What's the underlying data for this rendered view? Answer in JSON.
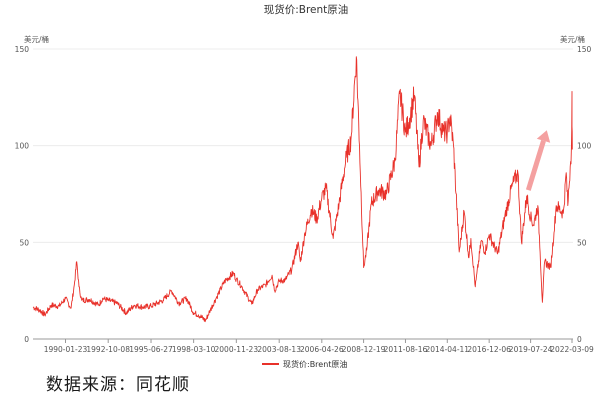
{
  "chart_data": {
    "type": "line",
    "title": "现货价:Brent原油",
    "y_unit_left": "美元/桶",
    "y_unit_right": "美元/桶",
    "ylim": [
      0,
      150
    ],
    "yticks": [
      "0",
      "50",
      "100",
      "150"
    ],
    "x_range": [
      "1988-01-01",
      "2022-04-01"
    ],
    "xticks": [
      "1990-01-23",
      "1992-10-08",
      "1995-06-27",
      "1998-03-10",
      "2000-11-23",
      "2003-08-13",
      "2006-04-26",
      "2008-12-19",
      "2011-08-16",
      "2014-04-11",
      "2016-12-06",
      "2019-07-24",
      "2022-03-09"
    ],
    "grid": true,
    "legend_position": "bottom-center",
    "series": [
      {
        "name": "现货价:Brent原油",
        "color": "#e8312a",
        "points": [
          [
            "1988-01-01",
            16.5
          ],
          [
            "1988-06-01",
            15.0
          ],
          [
            "1988-10-01",
            12.5
          ],
          [
            "1989-03-01",
            17.5
          ],
          [
            "1989-09-01",
            17.0
          ],
          [
            "1990-01-23",
            21.0
          ],
          [
            "1990-06-01",
            16.0
          ],
          [
            "1990-08-15",
            28.0
          ],
          [
            "1990-10-10",
            40.0
          ],
          [
            "1990-12-01",
            27.0
          ],
          [
            "1991-02-01",
            20.0
          ],
          [
            "1991-08-01",
            20.5
          ],
          [
            "1992-03-01",
            17.5
          ],
          [
            "1992-06-01",
            21.0
          ],
          [
            "1992-10-08",
            20.0
          ],
          [
            "1993-05-01",
            18.5
          ],
          [
            "1993-12-01",
            13.5
          ],
          [
            "1994-06-01",
            17.5
          ],
          [
            "1995-01-01",
            16.5
          ],
          [
            "1995-06-27",
            17.0
          ],
          [
            "1996-04-01",
            20.0
          ],
          [
            "1996-10-15",
            25.0
          ],
          [
            "1997-04-01",
            18.5
          ],
          [
            "1997-10-01",
            21.0
          ],
          [
            "1998-03-10",
            13.5
          ],
          [
            "1998-07-01",
            12.5
          ],
          [
            "1998-12-10",
            9.5
          ],
          [
            "1999-04-01",
            15.0
          ],
          [
            "1999-09-01",
            22.0
          ],
          [
            "2000-03-01",
            30.0
          ],
          [
            "2000-09-15",
            34.0
          ],
          [
            "2000-11-23",
            31.0
          ],
          [
            "2001-04-01",
            27.0
          ],
          [
            "2001-11-15",
            18.0
          ],
          [
            "2002-04-01",
            25.5
          ],
          [
            "2002-10-01",
            28.0
          ],
          [
            "2003-03-01",
            33.0
          ],
          [
            "2003-05-01",
            25.0
          ],
          [
            "2003-08-13",
            30.0
          ],
          [
            "2004-01-01",
            30.5
          ],
          [
            "2004-06-01",
            36.0
          ],
          [
            "2004-10-20",
            50.0
          ],
          [
            "2004-12-15",
            40.0
          ],
          [
            "2005-04-01",
            55.0
          ],
          [
            "2005-08-30",
            67.0
          ],
          [
            "2006-01-01",
            62.0
          ],
          [
            "2006-04-26",
            73.0
          ],
          [
            "2006-08-05",
            78.0
          ],
          [
            "2007-01-15",
            52.0
          ],
          [
            "2007-06-01",
            70.0
          ],
          [
            "2007-11-15",
            94.0
          ],
          [
            "2008-03-01",
            103.0
          ],
          [
            "2008-07-03",
            146.0
          ],
          [
            "2008-09-15",
            100.0
          ],
          [
            "2008-12-19",
            37.0
          ],
          [
            "2009-03-01",
            46.0
          ],
          [
            "2009-06-15",
            70.0
          ],
          [
            "2009-12-01",
            77.0
          ],
          [
            "2010-06-01",
            75.0
          ],
          [
            "2010-12-15",
            92.0
          ],
          [
            "2011-04-08",
            127.0
          ],
          [
            "2011-08-16",
            107.0
          ],
          [
            "2011-11-01",
            112.0
          ],
          [
            "2012-03-10",
            126.0
          ],
          [
            "2012-06-25",
            89.0
          ],
          [
            "2012-10-01",
            113.0
          ],
          [
            "2013-04-01",
            100.0
          ],
          [
            "2013-09-01",
            117.0
          ],
          [
            "2014-01-01",
            107.0
          ],
          [
            "2014-04-11",
            107.0
          ],
          [
            "2014-06-15",
            115.0
          ],
          [
            "2014-09-01",
            100.0
          ],
          [
            "2015-01-13",
            45.0
          ],
          [
            "2015-05-05",
            66.0
          ],
          [
            "2015-08-24",
            42.0
          ],
          [
            "2015-10-10",
            52.0
          ],
          [
            "2016-01-20",
            27.0
          ],
          [
            "2016-06-08",
            51.0
          ],
          [
            "2016-09-01",
            45.0
          ],
          [
            "2016-12-06",
            54.0
          ],
          [
            "2017-06-20",
            44.0
          ],
          [
            "2017-12-01",
            63.0
          ],
          [
            "2018-05-20",
            79.0
          ],
          [
            "2018-10-03",
            86.0
          ],
          [
            "2018-12-24",
            50.0
          ],
          [
            "2019-04-25",
            74.0
          ],
          [
            "2019-07-24",
            63.0
          ],
          [
            "2019-10-01",
            59.0
          ],
          [
            "2020-01-06",
            69.0
          ],
          [
            "2020-03-01",
            45.0
          ],
          [
            "2020-04-21",
            19.0
          ],
          [
            "2020-06-15",
            40.0
          ],
          [
            "2020-10-30",
            37.0
          ],
          [
            "2021-01-15",
            55.0
          ],
          [
            "2021-03-08",
            69.0
          ],
          [
            "2021-08-20",
            65.0
          ],
          [
            "2021-10-26",
            86.0
          ],
          [
            "2021-12-01",
            69.0
          ],
          [
            "2022-01-25",
            89.0
          ],
          [
            "2022-02-24",
            99.0
          ],
          [
            "2022-03-08",
            128.0
          ],
          [
            "2022-03-09",
            110.0
          ],
          [
            "2022-03-16",
            98.0
          ]
        ]
      }
    ],
    "annotation": {
      "type": "arrow",
      "color": "#f4a0a0",
      "direction": "up-right"
    }
  },
  "footer": {
    "source_text": "数据来源：同花顺"
  }
}
